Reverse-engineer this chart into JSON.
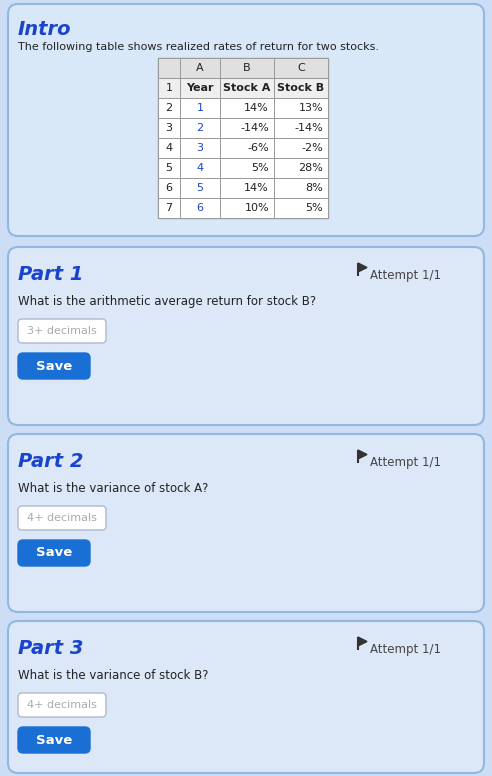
{
  "title": "Intro",
  "intro_text": "The following table shows realized rates of return for two stocks.",
  "table_col_headers": [
    "",
    "A",
    "B",
    "C"
  ],
  "table_row1": [
    "1",
    "Year",
    "Stock A",
    "Stock B"
  ],
  "table_data": [
    [
      "2",
      "1",
      "14%",
      "13%"
    ],
    [
      "3",
      "2",
      "-14%",
      "-14%"
    ],
    [
      "4",
      "3",
      "-6%",
      "-2%"
    ],
    [
      "5",
      "4",
      "5%",
      "28%"
    ],
    [
      "6",
      "5",
      "14%",
      "8%"
    ],
    [
      "7",
      "6",
      "10%",
      "5%"
    ]
  ],
  "parts": [
    {
      "title": "Part 1",
      "question": "What is the arithmetic average return for stock B?",
      "input_placeholder": "3+ decimals",
      "attempt": "Attempt 1/1"
    },
    {
      "title": "Part 2",
      "question": "What is the variance of stock A?",
      "input_placeholder": "4+ decimals",
      "attempt": "Attempt 1/1"
    },
    {
      "title": "Part 3",
      "question": "What is the variance of stock B?",
      "input_placeholder": "4+ decimals",
      "attempt": "Attempt 1/1"
    }
  ],
  "bg_outer": "#ccddf5",
  "bg_intro_card": "#d8e8f8",
  "bg_part_card": "#dce8f8",
  "table_bg": "#ffffff",
  "table_header_bg": "#e0e0e0",
  "table_row1_bg": "#efefef",
  "table_border": "#999999",
  "title_color": "#1a44cc",
  "text_color": "#333333",
  "text_dark": "#222222",
  "button_color": "#1a6fd4",
  "input_border": "#b0b8cc",
  "input_text": "#aaaaaa",
  "flag_color": "#333333",
  "year_color": "#1a44cc",
  "neg_color": "#444444",
  "card_border": "#90b8e0",
  "attempt_color": "#444444"
}
